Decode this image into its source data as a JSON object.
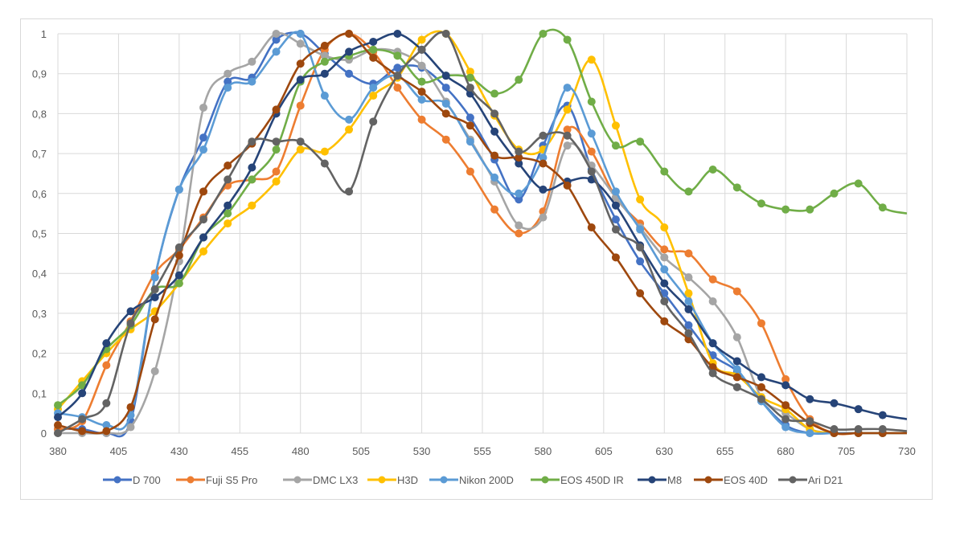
{
  "chart_data": {
    "type": "line",
    "title": "",
    "xlabel": "",
    "ylabel": "",
    "x": [
      380,
      390,
      400,
      410,
      420,
      430,
      440,
      450,
      460,
      470,
      480,
      490,
      500,
      510,
      520,
      530,
      540,
      550,
      560,
      570,
      580,
      590,
      600,
      610,
      620,
      630,
      640,
      650,
      660,
      670,
      680,
      690,
      700,
      710,
      720,
      730
    ],
    "xlim": [
      380,
      730
    ],
    "ylim": [
      0,
      1
    ],
    "x_ticks": [
      "380",
      "405",
      "430",
      "455",
      "480",
      "505",
      "530",
      "555",
      "580",
      "605",
      "630",
      "655",
      "680",
      "705",
      "730"
    ],
    "y_ticks": [
      "0",
      "0,1",
      "0,2",
      "0,3",
      "0,4",
      "0,5",
      "0,6",
      "0,7",
      "0,8",
      "0,9",
      "1"
    ],
    "grid": true,
    "smooth": true,
    "markers": true,
    "legend_position": "bottom",
    "series": [
      {
        "name": "D 700",
        "color": "#4472C4",
        "values": [
          0.01,
          0.01,
          0.0,
          0.03,
          0.39,
          0.61,
          0.74,
          0.88,
          0.89,
          0.985,
          1.0,
          0.95,
          0.9,
          0.875,
          0.915,
          0.915,
          0.865,
          0.79,
          0.685,
          0.585,
          0.72,
          0.82,
          0.66,
          0.535,
          0.43,
          0.35,
          0.27,
          0.195,
          0.155,
          0.08,
          0.02,
          0.0,
          0.0,
          0.0,
          0.0,
          0.0
        ]
      },
      {
        "name": "Fuji S5 Pro",
        "color": "#ED7D31",
        "values": [
          0.01,
          0.03,
          0.17,
          0.28,
          0.4,
          0.46,
          0.54,
          0.62,
          0.635,
          0.655,
          0.82,
          0.96,
          1.0,
          0.955,
          0.865,
          0.785,
          0.735,
          0.655,
          0.56,
          0.5,
          0.555,
          0.76,
          0.705,
          0.59,
          0.525,
          0.46,
          0.45,
          0.385,
          0.355,
          0.275,
          0.135,
          0.035,
          0.0,
          0.0,
          0.0,
          0.0
        ]
      },
      {
        "name": "DMC LX3",
        "color": "#A5A5A5",
        "values": [
          0.0,
          0.0,
          0.0,
          0.015,
          0.155,
          0.43,
          0.815,
          0.9,
          0.93,
          1.0,
          0.975,
          0.945,
          0.935,
          0.96,
          0.955,
          0.92,
          0.83,
          0.735,
          0.63,
          0.52,
          0.54,
          0.72,
          0.67,
          0.59,
          0.515,
          0.44,
          0.39,
          0.33,
          0.24,
          0.09,
          0.05,
          0.01,
          0.0,
          0.0,
          0.0,
          0.0
        ]
      },
      {
        "name": "H3D",
        "color": "#FFC000",
        "values": [
          0.06,
          0.13,
          0.2,
          0.26,
          0.305,
          0.375,
          0.455,
          0.525,
          0.57,
          0.63,
          0.71,
          0.705,
          0.76,
          0.845,
          0.89,
          0.985,
          1.0,
          0.905,
          0.795,
          0.71,
          0.71,
          0.81,
          0.935,
          0.77,
          0.585,
          0.515,
          0.35,
          0.175,
          0.145,
          0.09,
          0.06,
          0.01,
          0.0,
          0.0,
          0.0,
          0.0
        ]
      },
      {
        "name": "Nikon 200D",
        "color": "#5B9BD5",
        "values": [
          0.05,
          0.04,
          0.02,
          0.045,
          0.39,
          0.61,
          0.71,
          0.865,
          0.88,
          0.955,
          1.0,
          0.845,
          0.785,
          0.865,
          0.895,
          0.835,
          0.825,
          0.73,
          0.64,
          0.6,
          0.69,
          0.865,
          0.75,
          0.605,
          0.51,
          0.41,
          0.33,
          0.225,
          0.16,
          0.08,
          0.015,
          0.0,
          0.0,
          0.0,
          0.0,
          0.0
        ]
      },
      {
        "name": "EOS 450D IR",
        "color": "#70AD47",
        "values": [
          0.07,
          0.12,
          0.21,
          0.27,
          0.36,
          0.375,
          0.49,
          0.55,
          0.635,
          0.71,
          0.88,
          0.93,
          0.945,
          0.96,
          0.945,
          0.88,
          0.895,
          0.89,
          0.85,
          0.885,
          1.0,
          0.985,
          0.83,
          0.72,
          0.73,
          0.655,
          0.605,
          0.66,
          0.615,
          0.575,
          0.56,
          0.56,
          0.6,
          0.625,
          0.565,
          0.55
        ]
      },
      {
        "name": "M8",
        "color": "#264478",
        "values": [
          0.04,
          0.1,
          0.225,
          0.305,
          0.34,
          0.395,
          0.49,
          0.57,
          0.665,
          0.8,
          0.885,
          0.9,
          0.955,
          0.98,
          1.0,
          0.96,
          0.895,
          0.85,
          0.755,
          0.675,
          0.61,
          0.63,
          0.635,
          0.57,
          0.47,
          0.375,
          0.31,
          0.225,
          0.18,
          0.14,
          0.12,
          0.085,
          0.075,
          0.06,
          0.045,
          0.035
        ]
      },
      {
        "name": "EOS 40D",
        "color": "#9E480E",
        "values": [
          0.02,
          0.005,
          0.005,
          0.065,
          0.285,
          0.445,
          0.605,
          0.67,
          0.725,
          0.81,
          0.925,
          0.97,
          1.0,
          0.94,
          0.895,
          0.855,
          0.8,
          0.77,
          0.695,
          0.69,
          0.675,
          0.62,
          0.515,
          0.44,
          0.35,
          0.28,
          0.235,
          0.165,
          0.14,
          0.115,
          0.07,
          0.025,
          0.0,
          0.0,
          0.0,
          0.0
        ]
      },
      {
        "name": "Ari D21",
        "color": "#636363",
        "values": [
          0.0,
          0.035,
          0.075,
          0.275,
          0.36,
          0.465,
          0.535,
          0.635,
          0.73,
          0.73,
          0.73,
          0.675,
          0.605,
          0.78,
          0.895,
          0.96,
          1.0,
          0.865,
          0.8,
          0.705,
          0.745,
          0.745,
          0.655,
          0.51,
          0.465,
          0.33,
          0.25,
          0.15,
          0.115,
          0.085,
          0.035,
          0.03,
          0.01,
          0.01,
          0.01,
          0.005
        ]
      }
    ]
  }
}
